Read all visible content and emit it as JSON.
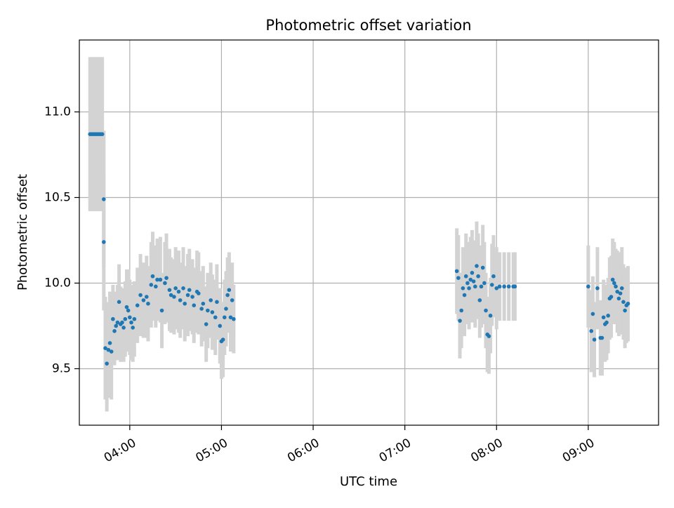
{
  "chart_data": {
    "type": "scatter",
    "title": "Photometric offset variation",
    "xlabel": "UTC time",
    "ylabel": "Photometric offset",
    "x_ticks": [
      "04:00",
      "05:00",
      "06:00",
      "07:00",
      "08:00",
      "09:00"
    ],
    "y_ticks": [
      "9.5",
      "10.0",
      "10.5",
      "11.0"
    ],
    "xlim": [
      "03:27",
      "09:46"
    ],
    "ylim": [
      9.17,
      11.42
    ],
    "grid": true,
    "colors": {
      "point": "#1f77b4",
      "errorbar": "#d3d3d3",
      "grid": "#b0b0b0"
    },
    "series": [
      {
        "points": [
          [
            "03:34",
            10.87,
            0.45
          ],
          [
            "03:35",
            10.87,
            0.45
          ],
          [
            "03:36",
            10.87,
            0.45
          ],
          [
            "03:37",
            10.87,
            0.45
          ],
          [
            "03:38",
            10.87,
            0.45
          ],
          [
            "03:39",
            10.87,
            0.45
          ],
          [
            "03:40",
            10.87,
            0.45
          ],
          [
            "03:41",
            10.87,
            0.45
          ],
          [
            "03:42",
            10.87,
            0.45
          ],
          [
            "03:43",
            10.49,
            0.4
          ],
          [
            "03:43",
            10.24,
            0.4
          ],
          [
            "03:44",
            9.62,
            0.3
          ],
          [
            "03:45",
            9.53,
            0.28
          ],
          [
            "03:46",
            9.61,
            0.28
          ],
          [
            "03:47",
            9.65,
            0.3
          ],
          [
            "03:48",
            9.6,
            0.28
          ],
          [
            "03:49",
            9.79,
            0.2
          ],
          [
            "03:50",
            9.72,
            0.2
          ],
          [
            "03:51",
            9.75,
            0.2
          ],
          [
            "03:52",
            9.77,
            0.22
          ],
          [
            "03:53",
            9.89,
            0.22
          ],
          [
            "03:54",
            9.76,
            0.22
          ],
          [
            "03:55",
            9.77,
            0.2
          ],
          [
            "03:56",
            9.74,
            0.2
          ],
          [
            "03:57",
            9.79,
            0.22
          ],
          [
            "03:58",
            9.86,
            0.22
          ],
          [
            "03:59",
            9.84,
            0.24
          ],
          [
            "04:00",
            9.8,
            0.22
          ],
          [
            "04:01",
            9.77,
            0.22
          ],
          [
            "04:02",
            9.74,
            0.2
          ],
          [
            "04:03",
            9.79,
            0.22
          ],
          [
            "04:05",
            9.87,
            0.22
          ],
          [
            "04:07",
            9.93,
            0.24
          ],
          [
            "04:09",
            9.9,
            0.22
          ],
          [
            "04:11",
            9.92,
            0.24
          ],
          [
            "04:12",
            9.88,
            0.22
          ],
          [
            "04:14",
            9.99,
            0.25
          ],
          [
            "04:15",
            10.04,
            0.26
          ],
          [
            "04:17",
            9.98,
            0.24
          ],
          [
            "04:18",
            10.02,
            0.24
          ],
          [
            "04:20",
            10.02,
            0.25
          ],
          [
            "04:21",
            9.84,
            0.22
          ],
          [
            "04:23",
            10.0,
            0.24
          ],
          [
            "04:24",
            10.03,
            0.26
          ],
          [
            "04:26",
            9.96,
            0.24
          ],
          [
            "04:27",
            9.93,
            0.22
          ],
          [
            "04:29",
            9.92,
            0.22
          ],
          [
            "04:30",
            9.97,
            0.24
          ],
          [
            "04:32",
            9.95,
            0.24
          ],
          [
            "04:33",
            9.9,
            0.22
          ],
          [
            "04:35",
            9.97,
            0.24
          ],
          [
            "04:36",
            9.88,
            0.22
          ],
          [
            "04:38",
            9.93,
            0.24
          ],
          [
            "04:39",
            9.96,
            0.24
          ],
          [
            "04:41",
            9.92,
            0.22
          ],
          [
            "04:42",
            9.87,
            0.22
          ],
          [
            "04:44",
            9.95,
            0.24
          ],
          [
            "04:45",
            9.94,
            0.24
          ],
          [
            "04:47",
            9.85,
            0.22
          ],
          [
            "04:48",
            9.88,
            0.22
          ],
          [
            "04:50",
            9.76,
            0.22
          ],
          [
            "04:51",
            9.84,
            0.22
          ],
          [
            "04:53",
            9.9,
            0.22
          ],
          [
            "04:54",
            9.83,
            0.22
          ],
          [
            "04:56",
            9.8,
            0.22
          ],
          [
            "04:57",
            9.89,
            0.22
          ],
          [
            "04:59",
            9.75,
            0.22
          ],
          [
            "05:00",
            9.66,
            0.22
          ],
          [
            "05:01",
            9.67,
            0.22
          ],
          [
            "05:02",
            9.8,
            0.22
          ],
          [
            "05:03",
            9.85,
            0.22
          ],
          [
            "05:04",
            9.93,
            0.22
          ],
          [
            "05:05",
            9.96,
            0.22
          ],
          [
            "05:06",
            9.8,
            0.2
          ],
          [
            "05:07",
            9.9,
            0.22
          ],
          [
            "05:08",
            9.79,
            0.2
          ],
          [
            "07:34",
            10.07,
            0.25
          ],
          [
            "07:35",
            10.03,
            0.25
          ],
          [
            "07:36",
            9.78,
            0.22
          ],
          [
            "07:37",
            9.84,
            0.22
          ],
          [
            "07:38",
            9.97,
            0.24
          ],
          [
            "07:39",
            9.93,
            0.24
          ],
          [
            "07:40",
            10.04,
            0.25
          ],
          [
            "07:41",
            10.0,
            0.24
          ],
          [
            "07:42",
            9.97,
            0.24
          ],
          [
            "07:43",
            10.02,
            0.25
          ],
          [
            "07:44",
            10.06,
            0.25
          ],
          [
            "07:45",
            10.01,
            0.24
          ],
          [
            "07:46",
            9.98,
            0.24
          ],
          [
            "07:47",
            10.1,
            0.26
          ],
          [
            "07:48",
            10.04,
            0.25
          ],
          [
            "07:49",
            9.9,
            0.22
          ],
          [
            "07:50",
            9.98,
            0.24
          ],
          [
            "07:51",
            10.09,
            0.25
          ],
          [
            "07:52",
            10.0,
            0.24
          ],
          [
            "07:53",
            9.84,
            0.22
          ],
          [
            "07:54",
            9.7,
            0.22
          ],
          [
            "07:55",
            9.69,
            0.22
          ],
          [
            "07:56",
            9.81,
            0.22
          ],
          [
            "07:57",
            9.99,
            0.24
          ],
          [
            "07:58",
            10.04,
            0.24
          ],
          [
            "08:00",
            9.97,
            0.24
          ],
          [
            "08:02",
            9.98,
            0.2
          ],
          [
            "08:05",
            9.98,
            0.2
          ],
          [
            "08:08",
            9.98,
            0.2
          ],
          [
            "08:11",
            9.98,
            0.2
          ],
          [
            "08:12",
            9.98,
            0.2
          ],
          [
            "09:00",
            9.98,
            0.24
          ],
          [
            "09:02",
            9.72,
            0.24
          ],
          [
            "09:03",
            9.82,
            0.22
          ],
          [
            "09:04",
            9.67,
            0.22
          ],
          [
            "09:06",
            9.97,
            0.24
          ],
          [
            "09:08",
            9.68,
            0.22
          ],
          [
            "09:09",
            9.68,
            0.22
          ],
          [
            "09:10",
            9.8,
            0.22
          ],
          [
            "09:11",
            9.76,
            0.22
          ],
          [
            "09:12",
            9.77,
            0.22
          ],
          [
            "09:13",
            9.81,
            0.22
          ],
          [
            "09:14",
            9.91,
            0.24
          ],
          [
            "09:15",
            9.92,
            0.24
          ],
          [
            "09:16",
            10.02,
            0.24
          ],
          [
            "09:17",
            10.0,
            0.24
          ],
          [
            "09:18",
            9.98,
            0.22
          ],
          [
            "09:19",
            9.95,
            0.24
          ],
          [
            "09:20",
            9.91,
            0.22
          ],
          [
            "09:21",
            9.94,
            0.24
          ],
          [
            "09:22",
            9.97,
            0.24
          ],
          [
            "09:23",
            9.89,
            0.22
          ],
          [
            "09:24",
            9.84,
            0.22
          ],
          [
            "09:25",
            9.87,
            0.22
          ],
          [
            "09:26",
            9.88,
            0.22
          ]
        ]
      }
    ]
  }
}
